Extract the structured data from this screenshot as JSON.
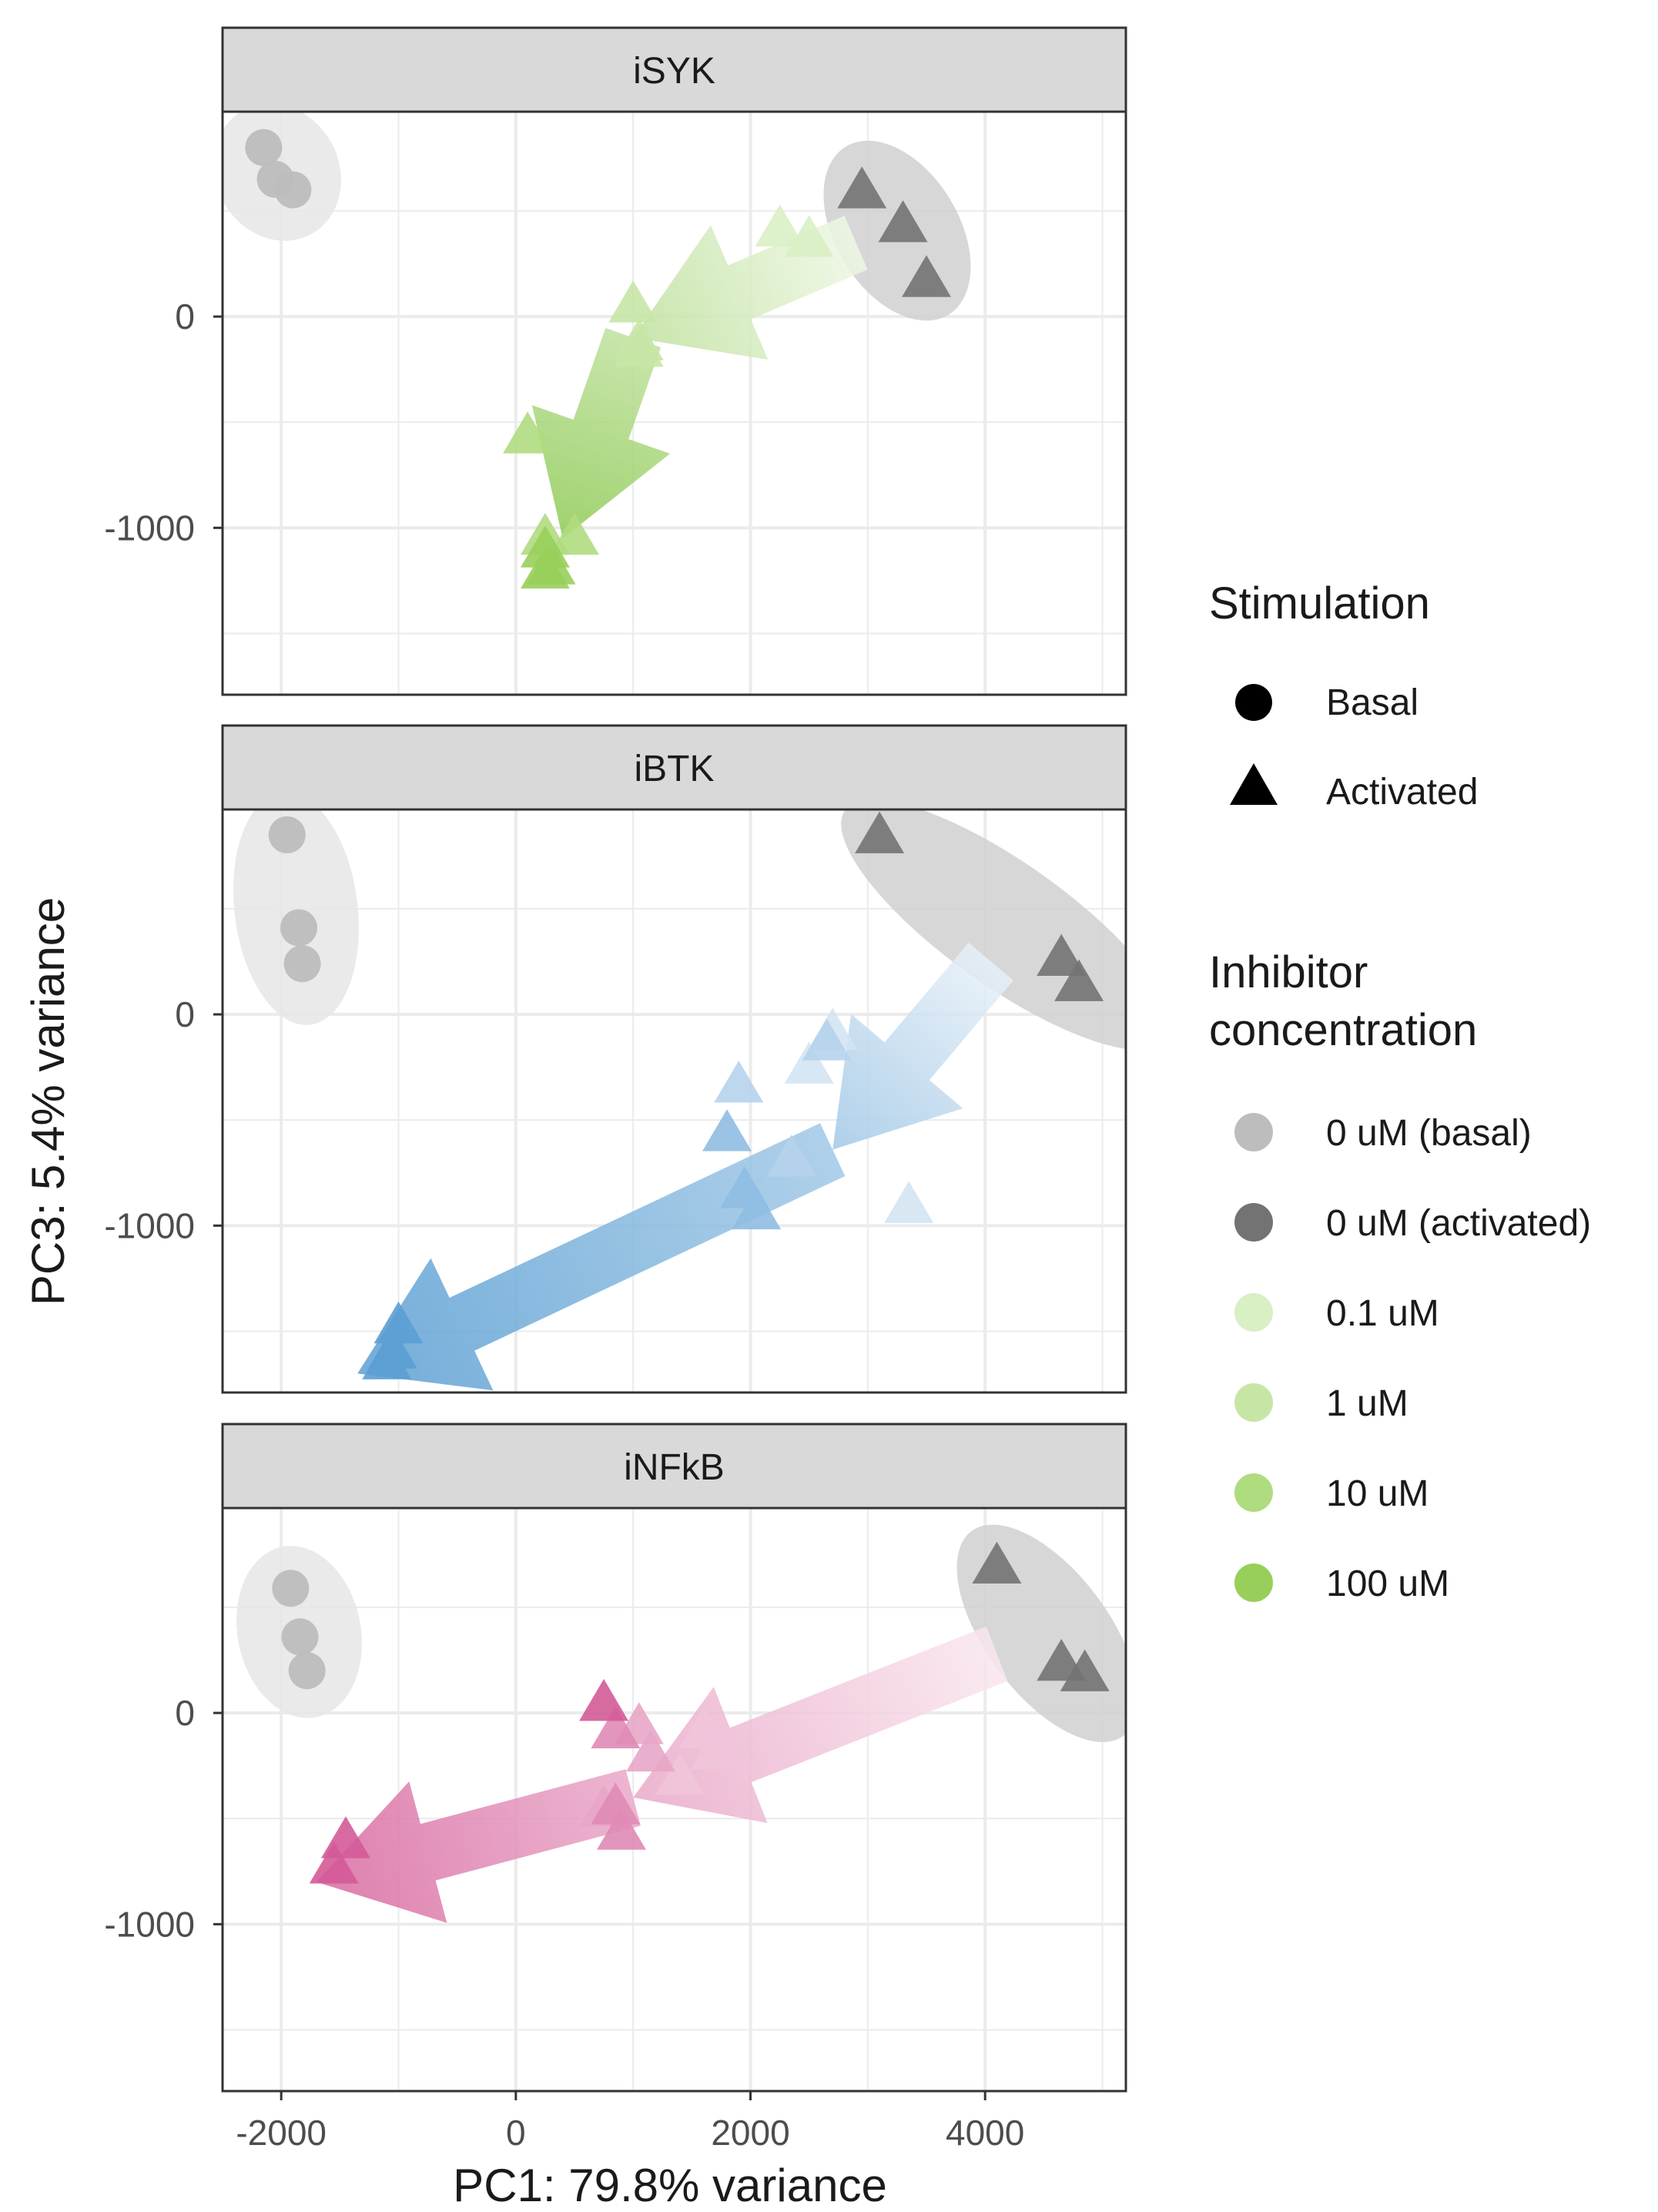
{
  "figure": {
    "xlabel": "PC1: 79.8% variance",
    "ylabel": "PC3: 5.4% variance"
  },
  "legend": {
    "stimulation_title": "Stimulation",
    "stimulation_items": [
      {
        "label": "Basal",
        "shape": "circle"
      },
      {
        "label": "Activated",
        "shape": "triangle"
      }
    ],
    "inhibitor_title_lines": [
      "Inhibitor",
      "concentration"
    ],
    "inhibitor_items": [
      {
        "label": "0 uM (basal)",
        "color": "#bdbdbd"
      },
      {
        "label": "0 uM (activated)",
        "color": "#737373"
      },
      {
        "label": "0.1 uM",
        "color": "#d9efc4"
      },
      {
        "label": "1 uM",
        "color": "#c7e6a6"
      },
      {
        "label": "10 uM",
        "color": "#b0dc80"
      },
      {
        "label": "100 uM",
        "color": "#98cf5a"
      }
    ]
  },
  "chart_data": [
    {
      "type": "scatter",
      "title": "iSYK",
      "xlim": [
        -2500,
        5200
      ],
      "ylim": [
        -1790,
        970
      ],
      "x_ticks": [
        -2000,
        0,
        2000,
        4000
      ],
      "y_ticks": [
        0,
        -1000
      ],
      "grid": true,
      "arrow_colors": [
        "#eef7e5",
        "#8fca55"
      ],
      "arrow_path": [
        [
          2900,
          350
        ],
        [
          1000,
          -100
        ],
        [
          400,
          -1050
        ]
      ],
      "groups": [
        {
          "concentration": "0 uM (basal)",
          "stimulation": "Basal",
          "color": "#bdbdbd",
          "points": [
            [
              -2150,
              800
            ],
            [
              -2050,
              650
            ],
            [
              -1900,
              600
            ]
          ]
        },
        {
          "concentration": "0 uM (activated)",
          "stimulation": "Activated",
          "color": "#737373",
          "points": [
            [
              2950,
              600
            ],
            [
              3300,
              440
            ],
            [
              3500,
              180
            ]
          ]
        },
        {
          "concentration": "0.1 uM",
          "stimulation": "Activated",
          "color": "#d9efc4",
          "points": [
            [
              2250,
              420
            ],
            [
              2500,
              370
            ]
          ]
        },
        {
          "concentration": "1 uM",
          "stimulation": "Activated",
          "color": "#c7e6a6",
          "points": [
            [
              1000,
              60
            ],
            [
              1050,
              -120
            ],
            [
              1050,
              -150
            ]
          ]
        },
        {
          "concentration": "10 uM",
          "stimulation": "Activated",
          "color": "#b0dc80",
          "points": [
            [
              100,
              -560
            ],
            [
              500,
              -1040
            ],
            [
              250,
              -1040
            ]
          ]
        },
        {
          "concentration": "100 uM",
          "stimulation": "Activated",
          "color": "#98cf5a",
          "points": [
            [
              250,
              -1100
            ],
            [
              250,
              -1200
            ],
            [
              300,
              -1180
            ]
          ]
        }
      ]
    },
    {
      "type": "scatter",
      "title": "iBTK",
      "xlim": [
        -2500,
        5200
      ],
      "ylim": [
        -1790,
        970
      ],
      "x_ticks": [
        -2000,
        0,
        2000,
        4000
      ],
      "y_ticks": [
        0,
        -1000
      ],
      "grid": true,
      "arrow_colors": [
        "#e7f0f8",
        "#5b9fd3"
      ],
      "arrow_path": [
        [
          4050,
          250
        ],
        [
          2700,
          -640
        ],
        [
          -1350,
          -1700
        ]
      ],
      "groups": [
        {
          "concentration": "0 uM (basal)",
          "stimulation": "Basal",
          "color": "#bdbdbd",
          "points": [
            [
              -1950,
              850
            ],
            [
              -1850,
              410
            ],
            [
              -1820,
              240
            ]
          ]
        },
        {
          "concentration": "0 uM (activated)",
          "stimulation": "Activated",
          "color": "#737373",
          "points": [
            [
              3100,
              850
            ],
            [
              4650,
              270
            ],
            [
              4800,
              150
            ]
          ]
        },
        {
          "concentration": "0.1 uM",
          "stimulation": "Activated",
          "color": "#d3e4f3",
          "points": [
            [
              2700,
              -80
            ],
            [
              2500,
              -240
            ],
            [
              3350,
              -900
            ]
          ]
        },
        {
          "concentration": "1 uM",
          "stimulation": "Activated",
          "color": "#b6d3ec",
          "points": [
            [
              1900,
              -330
            ],
            [
              2350,
              -680
            ],
            [
              2650,
              -130
            ]
          ]
        },
        {
          "concentration": "10 uM",
          "stimulation": "Activated",
          "color": "#8fbde2",
          "points": [
            [
              1800,
              -560
            ],
            [
              1950,
              -830
            ],
            [
              2050,
              -930
            ]
          ]
        },
        {
          "concentration": "100 uM",
          "stimulation": "Activated",
          "color": "#5b9fd3",
          "points": [
            [
              -1000,
              -1470
            ],
            [
              -1050,
              -1590
            ],
            [
              -1100,
              -1640
            ]
          ]
        }
      ]
    },
    {
      "type": "scatter",
      "title": "iNFkB",
      "xlim": [
        -2500,
        5200
      ],
      "ylim": [
        -1790,
        970
      ],
      "x_ticks": [
        -2000,
        0,
        2000,
        4000
      ],
      "y_ticks": [
        0,
        -1000
      ],
      "grid": true,
      "arrow_colors": [
        "#f9e6ef",
        "#d869a0"
      ],
      "arrow_path": [
        [
          4100,
          280
        ],
        [
          1000,
          -400
        ],
        [
          -1700,
          -800
        ]
      ],
      "groups": [
        {
          "concentration": "0 uM (basal)",
          "stimulation": "Basal",
          "color": "#bdbdbd",
          "points": [
            [
              -1920,
              590
            ],
            [
              -1840,
              360
            ],
            [
              -1780,
              200
            ]
          ]
        },
        {
          "concentration": "0 uM (activated)",
          "stimulation": "Activated",
          "color": "#737373",
          "points": [
            [
              4100,
              700
            ],
            [
              4650,
              240
            ],
            [
              4850,
              190
            ]
          ]
        },
        {
          "concentration": "0.1 uM",
          "stimulation": "Activated",
          "color": "#f0c4d9",
          "points": [
            [
              1600,
              -80
            ],
            [
              1700,
              -180
            ],
            [
              1400,
              -300
            ]
          ]
        },
        {
          "concentration": "1 uM",
          "stimulation": "Activated",
          "color": "#e8a6c6",
          "points": [
            [
              1050,
              -60
            ],
            [
              1150,
              -190
            ],
            [
              750,
              -450
            ]
          ]
        },
        {
          "concentration": "10 uM",
          "stimulation": "Activated",
          "color": "#df8bb6",
          "points": [
            [
              850,
              -80
            ],
            [
              850,
              -440
            ],
            [
              900,
              -560
            ]
          ]
        },
        {
          "concentration": "100 uM",
          "stimulation": "Activated",
          "color": "#d45a98",
          "points": [
            [
              750,
              50
            ],
            [
              -1450,
              -600
            ],
            [
              -1550,
              -720
            ]
          ]
        }
      ]
    }
  ]
}
